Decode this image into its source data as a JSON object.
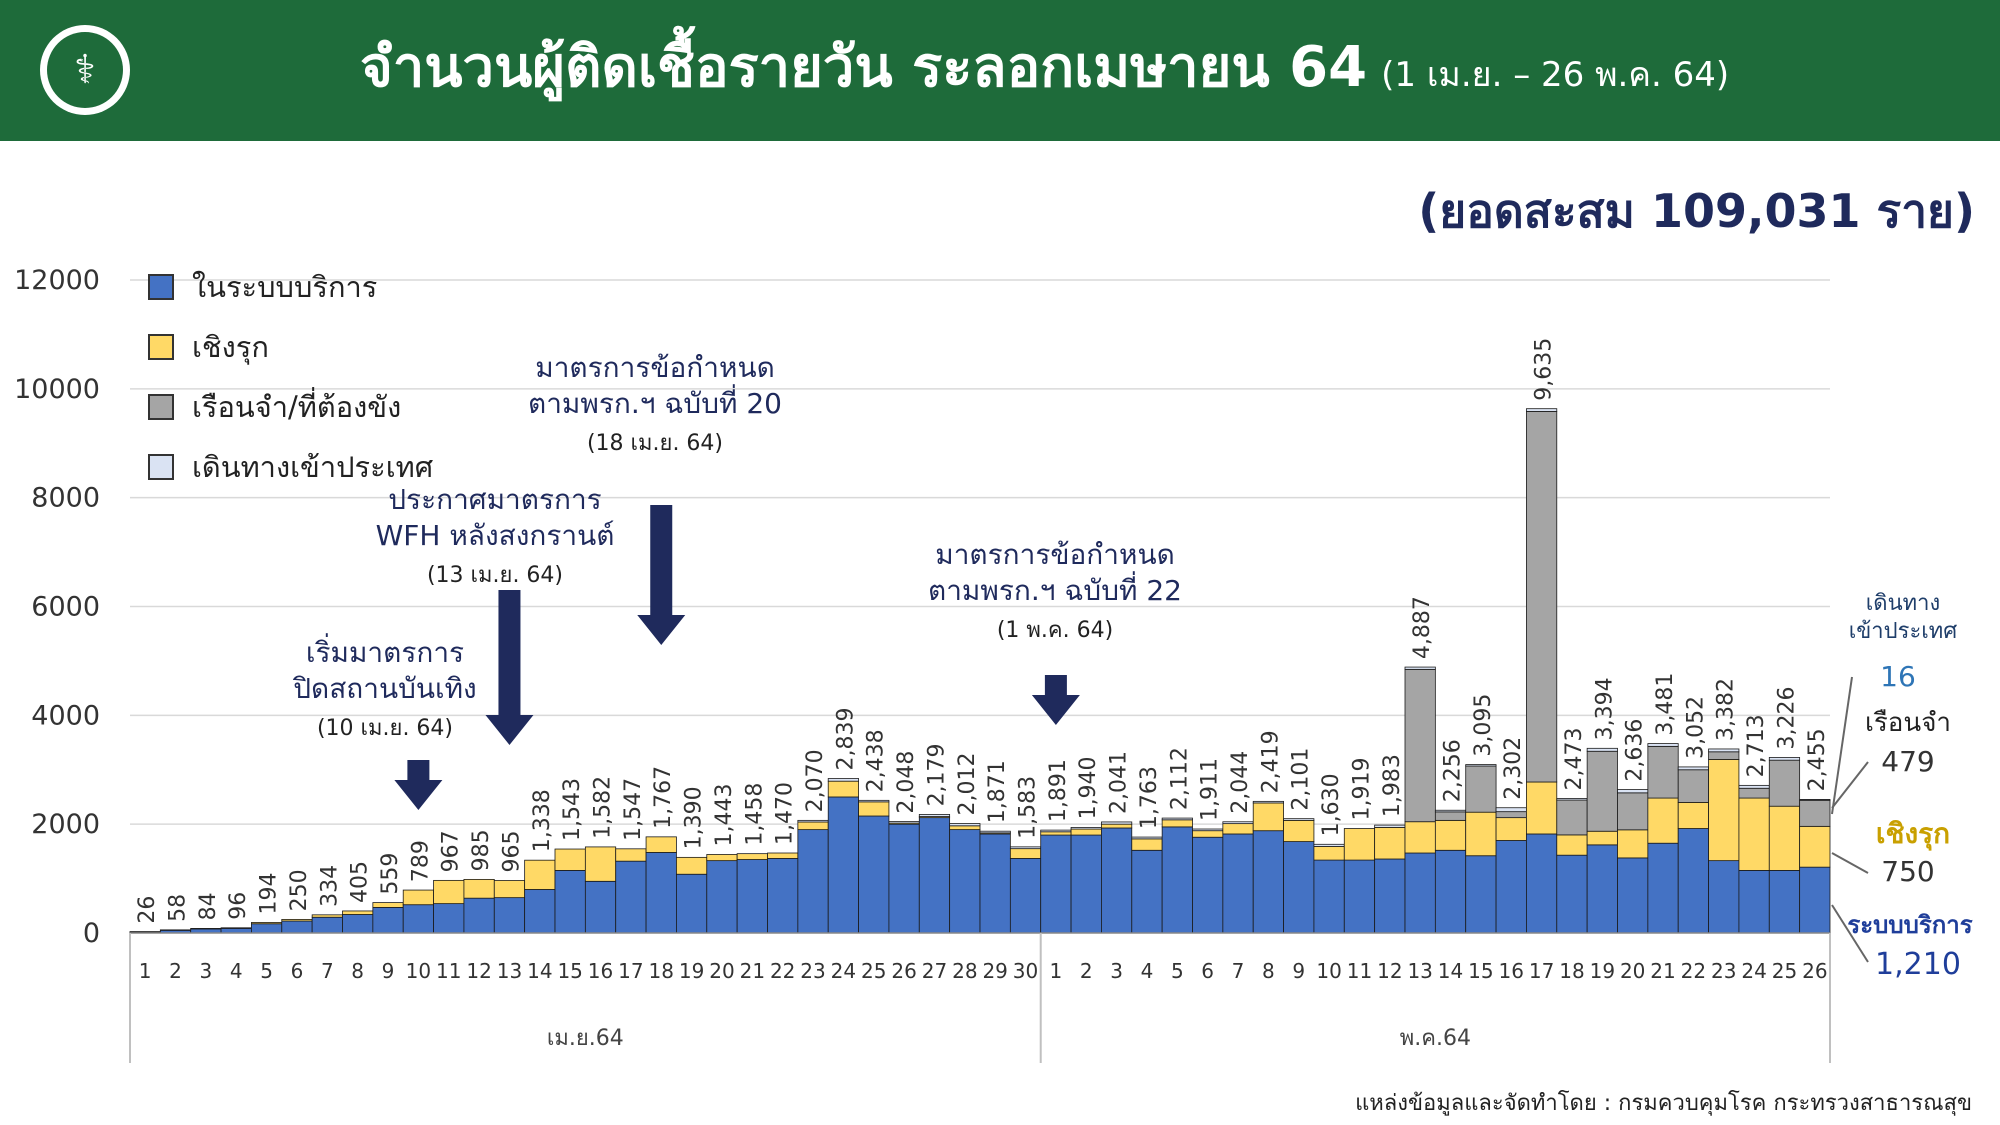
{
  "header": {
    "title": "จำนวนผู้ติดเชื้อรายวัน ระลอกเมษายน 64",
    "subtitle": "(1 เม.ย. – 26 พ.ค. 64)"
  },
  "cumulative_label": "(ยอดสะสม 109,031 ราย)",
  "legend": [
    {
      "label": "ในระบบบริการ",
      "color": "#4472c4"
    },
    {
      "label": "เชิงรุก",
      "color": "#ffd966"
    },
    {
      "label": "เรือนจำ/ที่ต้องขัง",
      "color": "#a5a5a5"
    },
    {
      "label": "เดินทางเข้าประเทศ",
      "color": "#dae3f3"
    }
  ],
  "annotations": [
    {
      "line1": "เริ่มมาตรการ",
      "line2": "ปิดสถานบันเทิง",
      "date": "(10 เม.ย. 64)"
    },
    {
      "line1": "ประกาศมาตรการ",
      "line2": "WFH หลังสงกรานต์",
      "date": "(13 เม.ย. 64)"
    },
    {
      "line1": "มาตรการข้อกำหนด",
      "line2": "ตามพรก.ฯ ฉบับที่ 20",
      "date": "(18 เม.ย. 64)"
    },
    {
      "line1": "มาตรการข้อกำหนด",
      "line2": "ตามพรก.ฯ ฉบับที่ 22",
      "date": "(1 พ.ค. 64)"
    }
  ],
  "side_labels": {
    "travel_title": "เดินทาง\nเข้าประเทศ",
    "travel_value": "16",
    "prison_title": "เรือนจำ",
    "prison_value": "479",
    "active_title": "เชิงรุก",
    "active_value": "750",
    "service_title": "ระบบบริการ",
    "service_value": "1,210"
  },
  "colors": {
    "header_bg": "#1e6b3a",
    "title_navy": "#1f2a5c",
    "arrow": "#1f2a5c",
    "service": "#4472c4",
    "active": "#ffd966",
    "prison": "#a5a5a5",
    "travel": "#dae3f3",
    "travel_text": "#2e75b6",
    "active_text": "#c9a000",
    "service_text": "#1f3e9a"
  },
  "source": "แหล่งข้อมูลและจัดทำโดย : กรมควบคุมโรค กระทรวงสาธารณสุข",
  "chart_data": {
    "type": "bar",
    "stacked": true,
    "ylim": [
      0,
      12000
    ],
    "yticks": [
      0,
      2000,
      4000,
      6000,
      8000,
      10000,
      12000
    ],
    "grid": true,
    "legend_position": "top-left",
    "groups": [
      {
        "label": "เม.ย.64",
        "start": 0,
        "count": 30
      },
      {
        "label": "พ.ค.64",
        "start": 30,
        "count": 26
      }
    ],
    "categories": [
      "1",
      "2",
      "3",
      "4",
      "5",
      "6",
      "7",
      "8",
      "9",
      "10",
      "11",
      "12",
      "13",
      "14",
      "15",
      "16",
      "17",
      "18",
      "19",
      "20",
      "21",
      "22",
      "23",
      "24",
      "25",
      "26",
      "27",
      "28",
      "29",
      "30",
      "1",
      "2",
      "3",
      "4",
      "5",
      "6",
      "7",
      "8",
      "9",
      "10",
      "11",
      "12",
      "13",
      "14",
      "15",
      "16",
      "17",
      "18",
      "19",
      "20",
      "21",
      "22",
      "23",
      "24",
      "25",
      "26"
    ],
    "totals_labels": [
      "26",
      "58",
      "84",
      "96",
      "194",
      "250",
      "334",
      "405",
      "559",
      "789",
      "967",
      "985",
      "965",
      "1,338",
      "1,543",
      "1,582",
      "1,547",
      "1,767",
      "1,390",
      "1,443",
      "1,458",
      "1,470",
      "2,070",
      "2,839",
      "2,438",
      "2,048",
      "2,179",
      "2,012",
      "1,871",
      "1,583",
      "1,891",
      "1,940",
      "2,041",
      "1,763",
      "2,112",
      "1,911",
      "2,044",
      "2,419",
      "2,101",
      "1,630",
      "1,919",
      "1,983",
      "4,887",
      "2,256",
      "3,095",
      "2,302",
      "9,635",
      "2,473",
      "3,394",
      "2,636",
      "3,481",
      "3,052",
      "3,382",
      "2,713",
      "3,226",
      "2,455"
    ],
    "series": [
      {
        "name": "ในระบบบริการ",
        "values": [
          20,
          50,
          75,
          85,
          170,
          220,
          290,
          340,
          470,
          520,
          540,
          640,
          650,
          800,
          1150,
          950,
          1320,
          1480,
          1080,
          1330,
          1350,
          1370,
          1900,
          2500,
          2150,
          2000,
          2120,
          1900,
          1820,
          1370,
          1800,
          1800,
          1930,
          1520,
          1950,
          1760,
          1820,
          1880,
          1680,
          1340,
          1340,
          1360,
          1470,
          1520,
          1420,
          1700,
          1820,
          1430,
          1620,
          1380,
          1650,
          1920,
          1330,
          1150,
          1150,
          1210
        ]
      },
      {
        "name": "เชิงรุก",
        "values": [
          6,
          8,
          9,
          11,
          24,
          30,
          44,
          65,
          89,
          269,
          427,
          345,
          315,
          538,
          393,
          632,
          227,
          287,
          310,
          113,
          108,
          100,
          140,
          290,
          260,
          20,
          20,
          70,
          20,
          180,
          60,
          110,
          70,
          210,
          130,
          120,
          190,
          510,
          390,
          250,
          580,
          580,
          575,
          550,
          800,
          420,
          955,
          373,
          250,
          516,
          830,
          480,
          1860,
          1330,
          1180,
          750
        ]
      },
      {
        "name": "เรือนจำ/ที่ต้องขัง",
        "values": [
          0,
          0,
          0,
          0,
          0,
          0,
          0,
          0,
          0,
          0,
          0,
          0,
          0,
          0,
          0,
          0,
          0,
          0,
          0,
          0,
          0,
          0,
          0,
          0,
          0,
          0,
          0,
          0,
          0,
          0,
          0,
          0,
          0,
          0,
          0,
          0,
          0,
          0,
          0,
          0,
          0,
          0,
          2800,
          156,
          849,
          110,
          6810,
          640,
          1470,
          680,
          950,
          600,
          140,
          180,
          846,
          479
        ]
      },
      {
        "name": "เดินทางเข้าประเทศ",
        "values": [
          0,
          0,
          0,
          0,
          0,
          0,
          0,
          0,
          0,
          0,
          0,
          0,
          0,
          0,
          0,
          0,
          0,
          0,
          0,
          0,
          0,
          0,
          30,
          49,
          28,
          28,
          39,
          42,
          31,
          33,
          31,
          30,
          41,
          33,
          32,
          31,
          34,
          29,
          31,
          40,
          0,
          43,
          42,
          30,
          26,
          72,
          50,
          30,
          54,
          60,
          51,
          52,
          52,
          53,
          50,
          16
        ]
      }
    ]
  }
}
